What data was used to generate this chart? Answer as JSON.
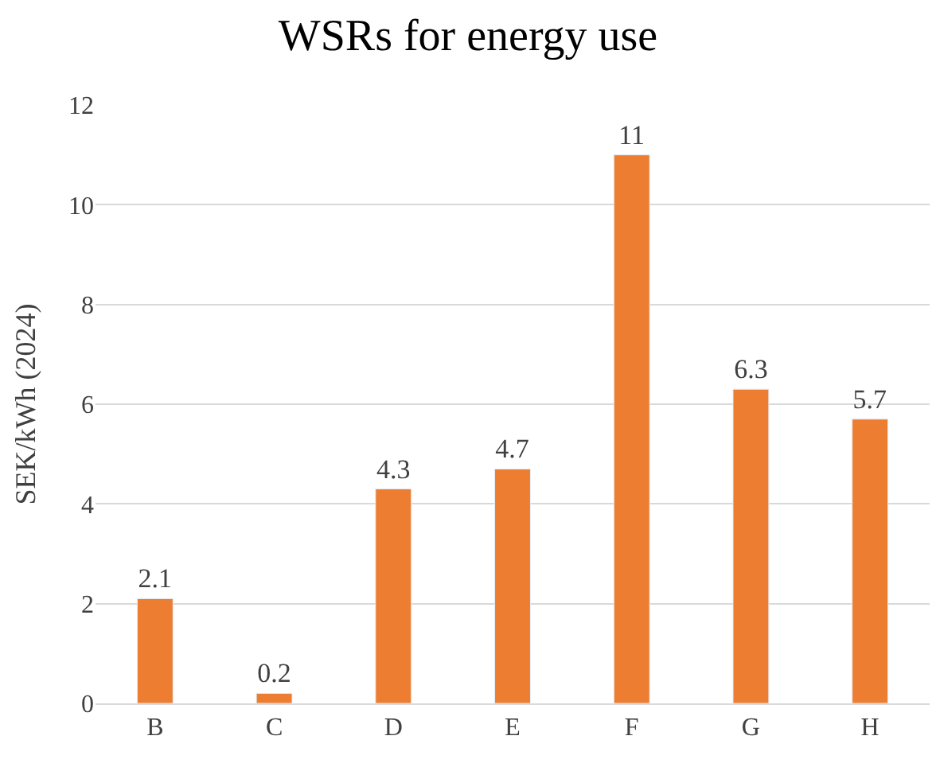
{
  "chart_data": {
    "type": "bar",
    "title": "WSRs for energy use",
    "ylabel": "SEK/kWh (2024)",
    "categories": [
      "B",
      "C",
      "D",
      "E",
      "F",
      "G",
      "H"
    ],
    "values": [
      2.1,
      0.2,
      4.3,
      4.7,
      11,
      6.3,
      5.7
    ],
    "color": "#ed7d31",
    "ylim": [
      0,
      12
    ],
    "yticks": [
      0,
      2,
      4,
      6,
      8,
      10,
      12
    ],
    "grid": "y",
    "data_labels": true
  }
}
